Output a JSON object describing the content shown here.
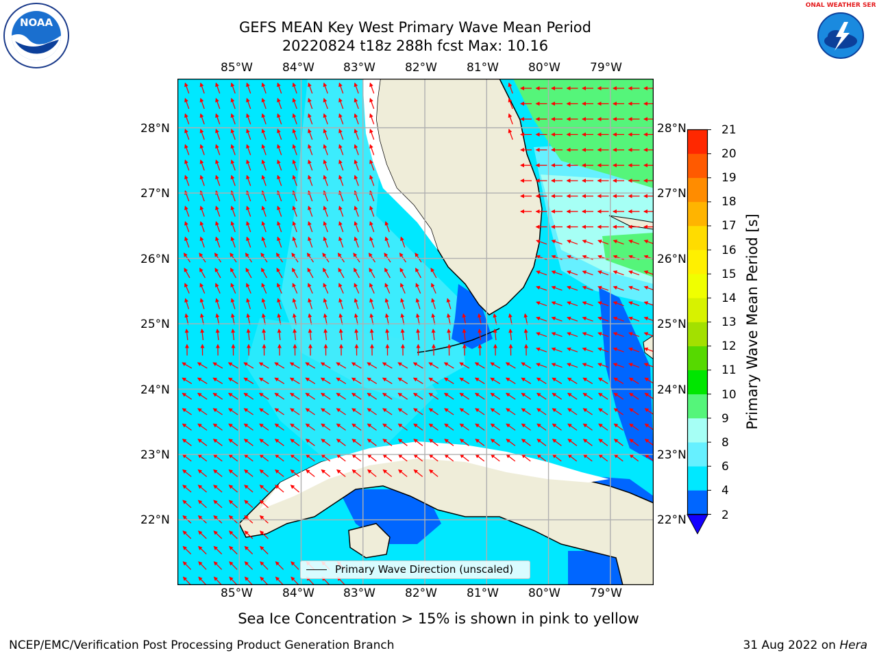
{
  "title": {
    "line1": "GEFS MEAN Key West Primary Wave Mean Period",
    "line2": "20220824 t18z 288h fcst   Max: 10.16"
  },
  "logos": {
    "left": {
      "name": "NOAA",
      "ring_text": "NATIONAL OCEANIC AND ATMOSPHERIC ADMINISTRATION · U.S. DEPARTMENT OF COMMERCE"
    },
    "right": {
      "name": "NATIONAL WEATHER SERVICE"
    }
  },
  "map": {
    "lon_labels": [
      "85°W",
      "84°W",
      "83°W",
      "82°W",
      "81°W",
      "80°W",
      "79°W"
    ],
    "lat_labels": [
      "28°N",
      "27°N",
      "26°N",
      "25°N",
      "24°N",
      "23°N",
      "22°N"
    ],
    "extent": {
      "lon_min": -86.0,
      "lon_max": -78.3,
      "lat_min": 21.0,
      "lat_max": 28.75
    },
    "legend_label": "Primary Wave Direction (unscaled)",
    "arrow_color": "#ff0000",
    "land_color": "#efedd9",
    "gridline_color": "#b0b0b0"
  },
  "colorbar": {
    "label": "Primary Wave Mean Period [s]",
    "ticks": [
      "21",
      "20",
      "19",
      "18",
      "17",
      "16",
      "15",
      "14",
      "13",
      "12",
      "11",
      "10",
      "9",
      "8",
      "6",
      "4",
      "2"
    ],
    "levels": [
      2,
      4,
      6,
      8,
      9,
      10,
      11,
      12,
      13,
      14,
      15,
      16,
      17,
      18,
      19,
      20,
      21
    ],
    "colors": [
      "#0066ff",
      "#00e8ff",
      "#66f0ff",
      "#a6fff5",
      "#55f57a",
      "#00e600",
      "#56d900",
      "#a3e000",
      "#d7f200",
      "#f0ff00",
      "#fff000",
      "#ffdc00",
      "#ffb400",
      "#ff8c00",
      "#ff5a00",
      "#ff2800"
    ],
    "extend_min_color": "#1400ff"
  },
  "notes": {
    "sea_ice": "Sea Ice Concentration > 15% is shown in pink to yellow",
    "branch": "NCEP/EMC/Verification Post Processing Product Generation Branch",
    "date": "31 Aug 2022 on ",
    "system": "Hera"
  }
}
